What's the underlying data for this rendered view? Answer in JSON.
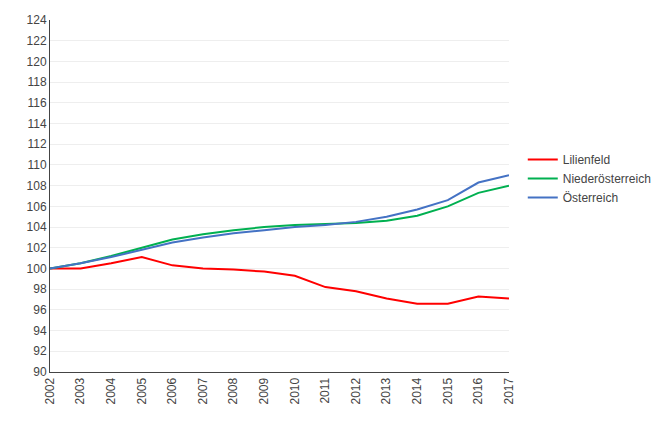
{
  "chart_data": {
    "type": "line",
    "x": [
      2002,
      2003,
      2004,
      2005,
      2006,
      2007,
      2008,
      2009,
      2010,
      2011,
      2012,
      2013,
      2014,
      2015,
      2016,
      2017
    ],
    "series": [
      {
        "name": "Lilienfeld",
        "color": "#FF0000",
        "values": [
          100.0,
          100.0,
          100.5,
          101.1,
          100.3,
          100.0,
          99.9,
          99.7,
          99.3,
          98.2,
          97.8,
          97.1,
          96.6,
          96.6,
          97.3,
          97.1
        ]
      },
      {
        "name": "Niederösterreich",
        "color": "#00B050",
        "values": [
          100.0,
          100.5,
          101.2,
          102.0,
          102.8,
          103.3,
          103.7,
          104.0,
          104.2,
          104.3,
          104.4,
          104.6,
          105.1,
          106.0,
          107.3,
          108.0
        ]
      },
      {
        "name": "Österreich",
        "color": "#4472C4",
        "values": [
          100.0,
          100.5,
          101.1,
          101.8,
          102.5,
          103.0,
          103.4,
          103.7,
          104.0,
          104.2,
          104.5,
          105.0,
          105.7,
          106.6,
          108.3,
          109.0
        ]
      }
    ],
    "xlim": [
      2002,
      2017
    ],
    "xticks": [
      2002,
      2003,
      2004,
      2005,
      2006,
      2007,
      2008,
      2009,
      2010,
      2011,
      2012,
      2013,
      2014,
      2015,
      2016,
      2017
    ],
    "ylim": [
      90,
      124
    ],
    "yticks": [
      90,
      92,
      94,
      96,
      98,
      100,
      102,
      104,
      106,
      108,
      110,
      112,
      114,
      116,
      118,
      120,
      122,
      124
    ],
    "grid": "y",
    "legend": "right"
  }
}
